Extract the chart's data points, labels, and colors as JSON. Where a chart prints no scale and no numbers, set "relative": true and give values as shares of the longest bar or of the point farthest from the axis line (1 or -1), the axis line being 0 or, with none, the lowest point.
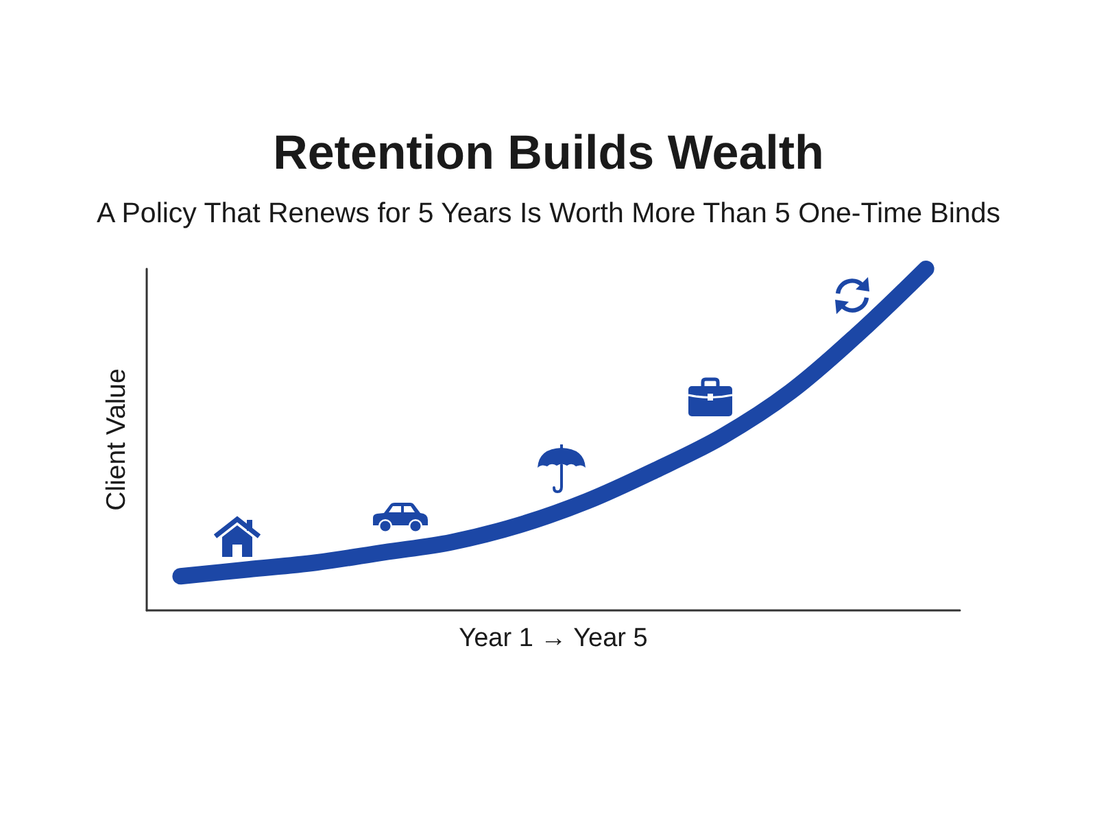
{
  "chart_data": {
    "type": "line",
    "title": "Retention Builds Wealth",
    "subtitle": "A Policy That Renews for 5 Years Is Worth More Than 5 One-Time Binds",
    "xlabel": "Year 1 → Year 5",
    "ylabel": "Client Value",
    "categories": [
      null,
      null,
      null,
      null,
      null,
      null,
      null,
      null,
      null,
      null,
      null,
      null
    ],
    "values": [
      0.1,
      0.12,
      0.14,
      0.17,
      0.2,
      0.25,
      0.32,
      0.41,
      0.51,
      0.64,
      0.81,
      1.0
    ],
    "color": "#1c47a6",
    "relative": true,
    "marker": "none",
    "line_style": "solid"
  }
}
